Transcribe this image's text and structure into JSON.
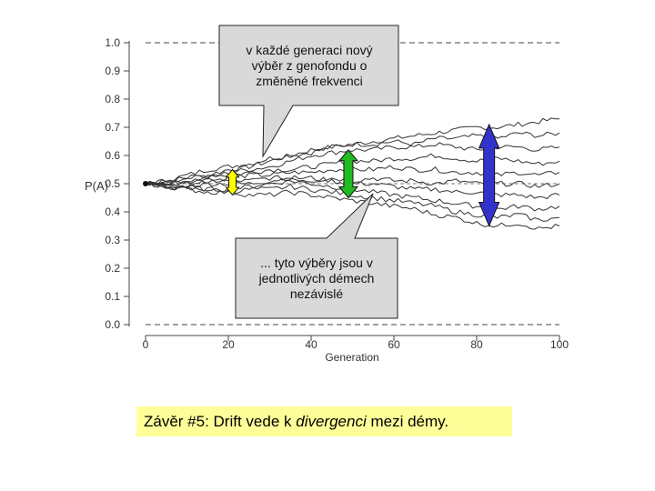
{
  "chart_data": {
    "type": "line",
    "xlabel": "Generation",
    "ylabel": "P(A)",
    "xlim": [
      0,
      100
    ],
    "ylim": [
      0,
      1
    ],
    "x_ticks": [
      0,
      20,
      40,
      60,
      80,
      100
    ],
    "y_ticks": [
      "0.0",
      "0.1",
      "0.2",
      "0.3",
      "0.4",
      "0.5",
      "0.6",
      "0.7",
      "0.8",
      "0.9",
      "1.0"
    ],
    "grid": "dashed horizontal at 0, 1 and P=0.5",
    "x": [
      0,
      5,
      10,
      15,
      20,
      25,
      30,
      35,
      40,
      45,
      50,
      55,
      60,
      65,
      70,
      75,
      80,
      85,
      90,
      95,
      100
    ],
    "series": [
      {
        "values": [
          0.5,
          0.51,
          0.52,
          0.53,
          0.55,
          0.56,
          0.58,
          0.6,
          0.62,
          0.63,
          0.64,
          0.65,
          0.66,
          0.67,
          0.68,
          0.69,
          0.7,
          0.7,
          0.71,
          0.72,
          0.73
        ]
      },
      {
        "values": [
          0.5,
          0.51,
          0.53,
          0.55,
          0.56,
          0.57,
          0.59,
          0.6,
          0.61,
          0.63,
          0.64,
          0.64,
          0.65,
          0.64,
          0.66,
          0.66,
          0.67,
          0.66,
          0.68,
          0.67,
          0.68
        ]
      },
      {
        "values": [
          0.5,
          0.5,
          0.51,
          0.52,
          0.54,
          0.55,
          0.56,
          0.58,
          0.6,
          0.61,
          0.62,
          0.62,
          0.63,
          0.63,
          0.64,
          0.63,
          0.62,
          0.63,
          0.63,
          0.62,
          0.63
        ]
      },
      {
        "values": [
          0.5,
          0.51,
          0.52,
          0.53,
          0.53,
          0.54,
          0.55,
          0.55,
          0.56,
          0.57,
          0.58,
          0.58,
          0.59,
          0.59,
          0.6,
          0.59,
          0.58,
          0.59,
          0.58,
          0.57,
          0.58
        ]
      },
      {
        "values": [
          0.5,
          0.5,
          0.51,
          0.51,
          0.52,
          0.53,
          0.53,
          0.54,
          0.54,
          0.55,
          0.55,
          0.55,
          0.56,
          0.55,
          0.55,
          0.54,
          0.54,
          0.53,
          0.54,
          0.53,
          0.54
        ]
      },
      {
        "values": [
          0.5,
          0.5,
          0.5,
          0.51,
          0.51,
          0.51,
          0.52,
          0.52,
          0.51,
          0.52,
          0.51,
          0.52,
          0.51,
          0.51,
          0.5,
          0.51,
          0.5,
          0.5,
          0.5,
          0.49,
          0.5
        ]
      },
      {
        "values": [
          0.5,
          0.49,
          0.49,
          0.5,
          0.5,
          0.5,
          0.51,
          0.52,
          0.52,
          0.51,
          0.5,
          0.5,
          0.49,
          0.48,
          0.48,
          0.47,
          0.47,
          0.46,
          0.46,
          0.45,
          0.46
        ]
      },
      {
        "values": [
          0.5,
          0.49,
          0.49,
          0.48,
          0.48,
          0.49,
          0.5,
          0.51,
          0.5,
          0.49,
          0.48,
          0.47,
          0.46,
          0.45,
          0.44,
          0.43,
          0.42,
          0.41,
          0.42,
          0.41,
          0.42
        ]
      },
      {
        "values": [
          0.5,
          0.49,
          0.48,
          0.48,
          0.47,
          0.48,
          0.48,
          0.49,
          0.48,
          0.47,
          0.46,
          0.45,
          0.44,
          0.43,
          0.42,
          0.4,
          0.39,
          0.38,
          0.39,
          0.37,
          0.38
        ]
      },
      {
        "values": [
          0.5,
          0.49,
          0.48,
          0.47,
          0.47,
          0.46,
          0.46,
          0.47,
          0.46,
          0.45,
          0.44,
          0.43,
          0.42,
          0.41,
          0.39,
          0.38,
          0.36,
          0.35,
          0.36,
          0.34,
          0.35
        ]
      }
    ],
    "arrows": [
      {
        "name": "yellow",
        "x": 21,
        "y_range": [
          0.46,
          0.55
        ],
        "color": "#ffff00"
      },
      {
        "name": "green",
        "x": 49,
        "y_range": [
          0.45,
          0.62
        ],
        "color": "#22bb22"
      },
      {
        "name": "blue",
        "x": 83,
        "y_range": [
          0.35,
          0.71
        ],
        "color": "#3333cc"
      }
    ]
  },
  "callouts": [
    {
      "text": "v každé generaci nový\nvýběr z genofondu o\nzměněné frekvenci"
    },
    {
      "text": "... tyto výběry jsou v\njednotlivých démech\nnezávislé"
    }
  ],
  "conclusion": {
    "prefix": "Závěr #5: Drift vede k ",
    "emphasis": "divergenci",
    "suffix": " mezi démy."
  },
  "colors": {
    "line": "#333333",
    "callout_fill": "#d9d9d9",
    "conclusion_fill": "#ffff99"
  }
}
